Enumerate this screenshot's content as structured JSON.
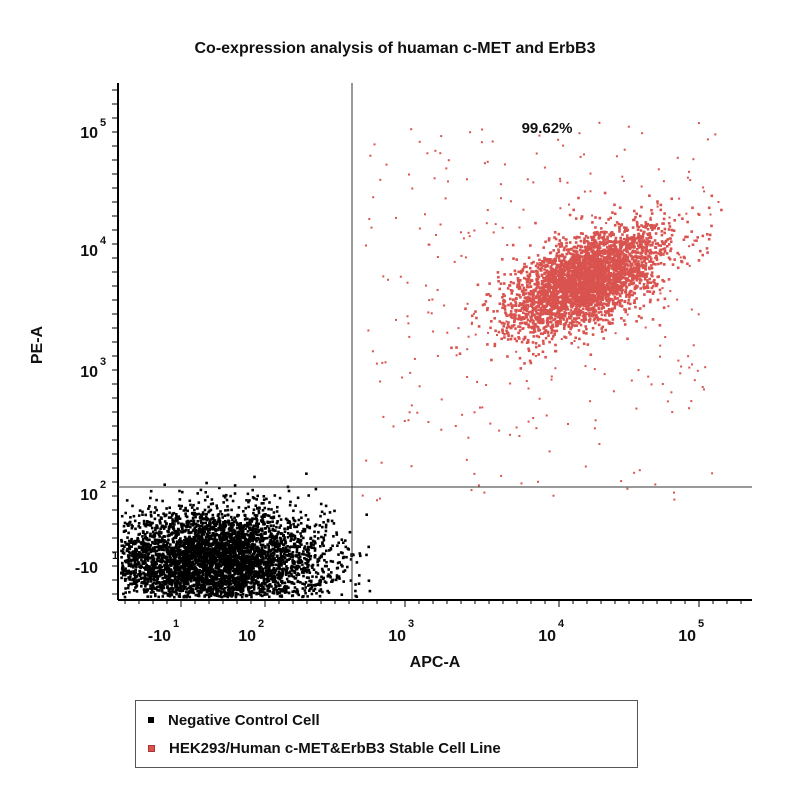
{
  "chart_data": {
    "type": "scatter",
    "title": "Co-expression analysis of huaman c-MET and ErbB3",
    "xlabel": "APC-A",
    "ylabel": "PE-A",
    "scale": "biexponential (log above ~10^2, linear near 0)",
    "xlim": [
      -30,
      200000
    ],
    "ylim": [
      -30,
      200000
    ],
    "x_tick_labels": [
      {
        "base": "-10",
        "exp": "1"
      },
      {
        "base": "10",
        "exp": "2"
      },
      {
        "base": "10",
        "exp": "3"
      },
      {
        "base": "10",
        "exp": "4"
      },
      {
        "base": "10",
        "exp": "5"
      }
    ],
    "y_tick_labels": [
      {
        "base": "-10",
        "exp": "1"
      },
      {
        "base": "10",
        "exp": "2"
      },
      {
        "base": "10",
        "exp": "3"
      },
      {
        "base": "10",
        "exp": "4"
      },
      {
        "base": "10",
        "exp": "5"
      }
    ],
    "gates": {
      "x_threshold": 450,
      "y_threshold": 100
    },
    "annotations": [
      {
        "text": "99.62%",
        "quadrant": "upper-right"
      }
    ],
    "series": [
      {
        "name": "Negative Control Cell",
        "color": "#000000",
        "population_center": {
          "x": 150,
          "y": 40
        },
        "distribution": "dense cluster in lower-left quadrant"
      },
      {
        "name": "HEK293/Human c-MET&ErbB3 Stable Cell Line",
        "color": "#d9534f",
        "population_center": {
          "x": 25000,
          "y": 10000
        },
        "distribution": "dense cluster in upper-right quadrant with diffuse tail toward lower values",
        "upper_right_percent": 99.62
      }
    ],
    "grid": false,
    "legend_position": "bottom"
  }
}
